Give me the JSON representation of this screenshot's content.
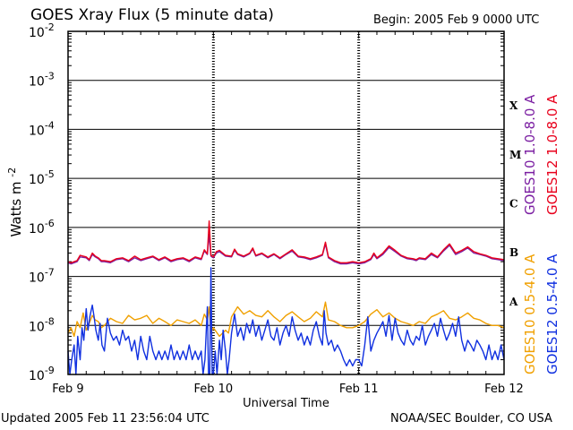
{
  "header": {
    "title": "GOES Xray Flux (5 minute data)",
    "begin": "Begin:  2005 Feb 9 0000 UTC"
  },
  "footer": {
    "updated": "Updated 2005 Feb 11 23:56:04 UTC",
    "credit": "NOAA/SEC Boulder, CO USA"
  },
  "chart_data": {
    "type": "line",
    "title": "GOES Xray Flux (5 minute data)",
    "xlabel": "Universal Time",
    "ylabel": "Watts m",
    "ylabel_superscript": "-2",
    "yscale": "log",
    "ylim": [
      1e-09,
      0.01
    ],
    "xlim": [
      0,
      72
    ],
    "x_unit": "hours since 2005 Feb 9 0000 UTC",
    "x_ticks": [
      {
        "x": 0,
        "label": "Feb 9"
      },
      {
        "x": 24,
        "label": "Feb 10"
      },
      {
        "x": 48,
        "label": "Feb 11"
      },
      {
        "x": 72,
        "label": "Feb 12"
      }
    ],
    "y_ticks": [
      {
        "exp": -2,
        "base": "10",
        "sup": "-2"
      },
      {
        "exp": -3,
        "base": "10",
        "sup": "-3"
      },
      {
        "exp": -4,
        "base": "10",
        "sup": "-4"
      },
      {
        "exp": -5,
        "base": "10",
        "sup": "-5"
      },
      {
        "exp": -6,
        "base": "10",
        "sup": "-6"
      },
      {
        "exp": -7,
        "base": "10",
        "sup": "-7"
      },
      {
        "exp": -8,
        "base": "10",
        "sup": "-8"
      },
      {
        "exp": -9,
        "base": "10",
        "sup": "-9"
      }
    ],
    "flare_classes": [
      {
        "label": "X",
        "exp": -3.5
      },
      {
        "label": "M",
        "exp": -4.5
      },
      {
        "label": "C",
        "exp": -5.5
      },
      {
        "label": "B",
        "exp": -6.5
      },
      {
        "label": "A",
        "exp": -7.5
      }
    ],
    "grid": "horizontal lines at each decade",
    "colors": {
      "goes10_long": "#7b1fa2",
      "goes12_long": "#e8001c",
      "goes10_short": "#f0a000",
      "goes12_short": "#1030e0"
    },
    "series": [
      {
        "name": "GOES10 1.0-8.0 A",
        "color": "#7b1fa2",
        "x": [
          0,
          0.5,
          1.5,
          2,
          3,
          3.5,
          4,
          4.5,
          5,
          5.5,
          6,
          7,
          8,
          9,
          10,
          11,
          12,
          13,
          14,
          15,
          16,
          17,
          18,
          19,
          20,
          21,
          22,
          22.5,
          23,
          23.3,
          23.6,
          24,
          24.5,
          25,
          26,
          27,
          27.5,
          28,
          29,
          30,
          30.5,
          31,
          32,
          33,
          34,
          35,
          36,
          37,
          38,
          39,
          40,
          41,
          42,
          42.5,
          43,
          44,
          45,
          46,
          47,
          48,
          49,
          50,
          50.5,
          51,
          52,
          53,
          54,
          55,
          56,
          57,
          57.5,
          58,
          59,
          60,
          61,
          62,
          63,
          64,
          65,
          66,
          67,
          68,
          69,
          70,
          71,
          72
        ],
        "y": [
          1.9e-07,
          1.8e-07,
          2e-07,
          2.5e-07,
          2.4e-07,
          2.1e-07,
          2.8e-07,
          2.5e-07,
          2.3e-07,
          2e-07,
          2e-07,
          1.9e-07,
          2.2e-07,
          2.3e-07,
          2e-07,
          2.4e-07,
          2.1e-07,
          2.3e-07,
          2.5e-07,
          2.1e-07,
          2.4e-07,
          2e-07,
          2.2e-07,
          2.3e-07,
          2e-07,
          2.4e-07,
          2.2e-07,
          3.3e-07,
          2.8e-07,
          7.2e-07,
          2.6e-07,
          2.4e-07,
          3e-07,
          3.2e-07,
          2.6e-07,
          2.5e-07,
          3.4e-07,
          2.8e-07,
          2.5e-07,
          2.9e-07,
          3.6e-07,
          2.6e-07,
          2.9e-07,
          2.4e-07,
          2.8e-07,
          2.3e-07,
          2.8e-07,
          3.3e-07,
          2.5e-07,
          2.4e-07,
          2.2e-07,
          2.4e-07,
          2.7e-07,
          4.6e-07,
          2.4e-07,
          2e-07,
          1.8e-07,
          1.8e-07,
          1.9e-07,
          1.8e-07,
          1.9e-07,
          2.2e-07,
          2.8e-07,
          2.3e-07,
          2.8e-07,
          3.9e-07,
          3.2e-07,
          2.6e-07,
          2.3e-07,
          2.2e-07,
          2.1e-07,
          2.3e-07,
          2.2e-07,
          2.8e-07,
          2.4e-07,
          3.3e-07,
          4.3e-07,
          2.8e-07,
          3.2e-07,
          3.8e-07,
          3e-07,
          2.8e-07,
          2.6e-07,
          2.3e-07,
          2.2e-07,
          2.1e-07
        ]
      },
      {
        "name": "GOES12 1.0-8.0 A",
        "color": "#e8001c",
        "x": [
          0,
          0.5,
          1.5,
          2,
          3,
          3.5,
          4,
          4.5,
          5,
          5.5,
          6,
          7,
          8,
          9,
          10,
          11,
          12,
          13,
          14,
          15,
          16,
          17,
          18,
          19,
          20,
          21,
          22,
          22.5,
          23,
          23.3,
          23.6,
          24,
          24.5,
          25,
          26,
          27,
          27.5,
          28,
          29,
          30,
          30.5,
          31,
          32,
          33,
          34,
          35,
          36,
          37,
          38,
          39,
          40,
          41,
          42,
          42.5,
          43,
          44,
          45,
          46,
          47,
          48,
          49,
          50,
          50.5,
          51,
          52,
          53,
          54,
          55,
          56,
          57,
          57.5,
          58,
          59,
          60,
          61,
          62,
          63,
          64,
          65,
          66,
          67,
          68,
          69,
          70,
          71,
          72
        ],
        "y": [
          2e-07,
          1.9e-07,
          2.1e-07,
          2.7e-07,
          2.5e-07,
          2.2e-07,
          3e-07,
          2.6e-07,
          2.4e-07,
          2.1e-07,
          2.1e-07,
          2e-07,
          2.3e-07,
          2.4e-07,
          2.1e-07,
          2.6e-07,
          2.2e-07,
          2.4e-07,
          2.6e-07,
          2.2e-07,
          2.5e-07,
          2.1e-07,
          2.3e-07,
          2.4e-07,
          2.1e-07,
          2.5e-07,
          2.3e-07,
          3.5e-07,
          2.9e-07,
          1.35e-06,
          2.7e-07,
          2.5e-07,
          3.2e-07,
          3.4e-07,
          2.7e-07,
          2.6e-07,
          3.6e-07,
          2.9e-07,
          2.6e-07,
          3e-07,
          3.8e-07,
          2.7e-07,
          3e-07,
          2.5e-07,
          2.9e-07,
          2.4e-07,
          2.9e-07,
          3.5e-07,
          2.6e-07,
          2.5e-07,
          2.3e-07,
          2.5e-07,
          2.8e-07,
          5e-07,
          2.5e-07,
          2.1e-07,
          1.9e-07,
          1.9e-07,
          2e-07,
          1.9e-07,
          2e-07,
          2.3e-07,
          3e-07,
          2.4e-07,
          3e-07,
          4.2e-07,
          3.4e-07,
          2.7e-07,
          2.4e-07,
          2.3e-07,
          2.2e-07,
          2.4e-07,
          2.3e-07,
          3e-07,
          2.5e-07,
          3.5e-07,
          4.6e-07,
          3e-07,
          3.4e-07,
          4e-07,
          3.2e-07,
          2.9e-07,
          2.7e-07,
          2.4e-07,
          2.3e-07,
          2.2e-07
        ]
      },
      {
        "name": "GOES10 0.5-4.0 A",
        "color": "#f0a000",
        "x": [
          0,
          0.5,
          1,
          1.5,
          2,
          2.5,
          3,
          3.5,
          4,
          4.5,
          5,
          5.5,
          6,
          7,
          8,
          9,
          10,
          11,
          12,
          13,
          14,
          15,
          16,
          17,
          18,
          19,
          20,
          21,
          22,
          22.5,
          23,
          23.3,
          23.6,
          24,
          25,
          26,
          26.5,
          27,
          28,
          29,
          30,
          31,
          32,
          33,
          34,
          35,
          36,
          37,
          38,
          39,
          40,
          41,
          42,
          42.5,
          43,
          44,
          45,
          46,
          47,
          48,
          49,
          50,
          51,
          52,
          53,
          54,
          55,
          56,
          57,
          58,
          59,
          60,
          61,
          62,
          63,
          64,
          65,
          66,
          67,
          68,
          69,
          70,
          71,
          72
        ],
        "y": [
          7e-09,
          9e-09,
          6e-09,
          1.2e-08,
          9e-09,
          1.8e-08,
          8e-09,
          1.1e-08,
          1.6e-08,
          1.3e-08,
          1.2e-08,
          9e-09,
          1e-08,
          1.4e-08,
          1.2e-08,
          1.1e-08,
          1.6e-08,
          1.3e-08,
          1.4e-08,
          1.6e-08,
          1.1e-08,
          1.4e-08,
          1.2e-08,
          1e-08,
          1.3e-08,
          1.2e-08,
          1.1e-08,
          1.3e-08,
          1e-08,
          1.7e-08,
          1.3e-08,
          2.4e-08,
          7e-09,
          9e-09,
          6e-09,
          8e-09,
          7e-09,
          1.5e-08,
          2.4e-08,
          1.7e-08,
          2e-08,
          1.6e-08,
          1.5e-08,
          2e-08,
          1.5e-08,
          1.2e-08,
          1.6e-08,
          1.9e-08,
          1.5e-08,
          1.2e-08,
          1.4e-08,
          1.9e-08,
          1.5e-08,
          3e-08,
          1.3e-08,
          1.2e-08,
          1e-08,
          9e-09,
          9e-09,
          1e-08,
          1.2e-08,
          1.7e-08,
          2.1e-08,
          1.5e-08,
          1.8e-08,
          1.4e-08,
          1.2e-08,
          1.1e-08,
          1e-08,
          1.2e-08,
          1.1e-08,
          1.5e-08,
          1.7e-08,
          2e-08,
          1.4e-08,
          1.3e-08,
          1.5e-08,
          1.8e-08,
          1.4e-08,
          1.3e-08,
          1.1e-08,
          1e-08,
          1e-08,
          9e-09
        ]
      },
      {
        "name": "GOES12 0.5-4.0 A",
        "color": "#1030e0",
        "x": [
          0,
          0.3,
          0.6,
          1,
          1.3,
          1.6,
          2,
          2.3,
          2.6,
          3,
          3.3,
          3.6,
          4,
          4.3,
          4.6,
          5,
          5.3,
          5.6,
          6,
          6.5,
          7,
          7.5,
          8,
          8.5,
          9,
          9.5,
          10,
          10.5,
          11,
          11.5,
          12,
          12.5,
          13,
          13.5,
          14,
          14.5,
          15,
          15.5,
          16,
          16.5,
          17,
          17.5,
          18,
          18.5,
          19,
          19.5,
          20,
          20.5,
          21,
          21.5,
          22,
          22.3,
          22.6,
          23,
          23.2,
          23.4,
          23.6,
          23.8,
          24,
          24.3,
          24.6,
          25,
          25.3,
          25.6,
          26,
          26.3,
          26.6,
          27,
          27.5,
          28,
          28.5,
          29,
          29.5,
          30,
          30.5,
          31,
          31.5,
          32,
          32.5,
          33,
          33.5,
          34,
          34.5,
          35,
          35.5,
          36,
          36.5,
          37,
          37.5,
          38,
          38.5,
          39,
          39.5,
          40,
          40.5,
          41,
          41.5,
          42,
          42.3,
          42.6,
          43,
          43.5,
          44,
          44.5,
          45,
          45.5,
          46,
          46.5,
          47,
          47.5,
          48,
          48.5,
          49,
          49.5,
          50,
          50.5,
          51,
          51.5,
          52,
          52.5,
          53,
          53.5,
          54,
          54.5,
          55,
          55.5,
          56,
          56.5,
          57,
          57.5,
          58,
          58.5,
          59,
          59.5,
          60,
          60.5,
          61,
          61.5,
          62,
          62.5,
          63,
          63.5,
          64,
          64.5,
          65,
          65.5,
          66,
          66.5,
          67,
          67.5,
          68,
          68.5,
          69,
          69.5,
          70,
          70.5,
          71,
          71.5,
          72
        ],
        "y": [
          3e-09,
          1e-09,
          2e-09,
          4e-09,
          1e-09,
          6e-09,
          2e-09,
          9e-09,
          5e-09,
          2.2e-08,
          8e-09,
          1.5e-08,
          2.6e-08,
          1.5e-08,
          8e-09,
          5e-09,
          1.1e-08,
          4e-09,
          3e-09,
          1.4e-08,
          7e-09,
          5e-09,
          6e-09,
          4e-09,
          8e-09,
          5e-09,
          6e-09,
          3e-09,
          5e-09,
          2e-09,
          6e-09,
          3e-09,
          2e-09,
          6e-09,
          3e-09,
          2e-09,
          3e-09,
          2e-09,
          3e-09,
          2e-09,
          4e-09,
          2e-09,
          3e-09,
          2e-09,
          3e-09,
          2e-09,
          4e-09,
          2e-09,
          3e-09,
          2e-09,
          3e-09,
          1e-09,
          2e-09,
          2.4e-08,
          1e-09,
          1e-09,
          1.5e-07,
          1e-09,
          1e-09,
          3e-09,
          1e-09,
          5e-09,
          2e-09,
          8e-09,
          3e-09,
          1e-09,
          2e-09,
          7e-09,
          1.7e-08,
          6e-09,
          9e-09,
          5e-09,
          1.1e-08,
          7e-09,
          1.3e-08,
          6e-09,
          1e-08,
          5e-09,
          8e-09,
          1.3e-08,
          6e-09,
          5e-09,
          9e-09,
          4e-09,
          7e-09,
          1e-08,
          6e-09,
          1.5e-08,
          8e-09,
          5e-09,
          7e-09,
          4e-09,
          6e-09,
          4e-09,
          8e-09,
          1.2e-08,
          6e-09,
          4e-09,
          2e-08,
          7e-09,
          4e-09,
          5e-09,
          3e-09,
          4e-09,
          3e-09,
          2e-09,
          1.5e-09,
          2e-09,
          1.5e-09,
          2e-09,
          2e-09,
          1.5e-09,
          4e-09,
          1.5e-08,
          3e-09,
          5e-09,
          7e-09,
          9e-09,
          1.2e-08,
          6e-09,
          1.6e-08,
          5e-09,
          1.4e-08,
          7e-09,
          5e-09,
          4e-09,
          8e-09,
          5e-09,
          4e-09,
          6e-09,
          5e-09,
          1e-08,
          4e-09,
          6e-09,
          8e-09,
          1.1e-08,
          6e-09,
          1.4e-08,
          8e-09,
          5e-09,
          7e-09,
          1.1e-08,
          6e-09,
          1.5e-08,
          5e-09,
          3e-09,
          5e-09,
          4e-09,
          3e-09,
          5e-09,
          4e-09,
          3e-09,
          2e-09,
          4e-09,
          2e-09,
          3e-09,
          2e-09,
          4e-09,
          2e-09
        ]
      }
    ]
  }
}
